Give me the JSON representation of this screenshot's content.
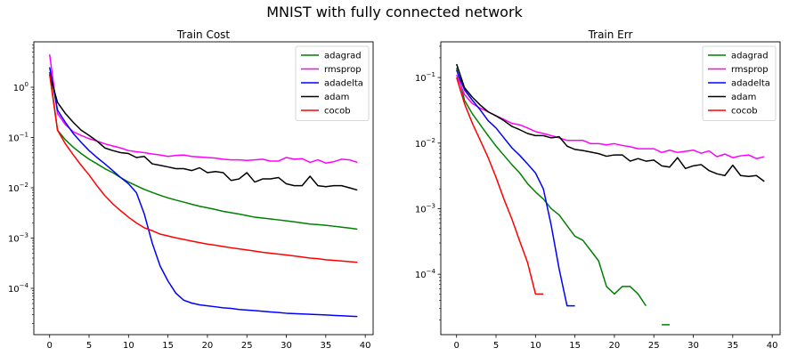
{
  "figure": {
    "title": "MNIST with fully connected network"
  },
  "chart_data": [
    {
      "type": "line",
      "title": "Train Cost",
      "xlabel": "",
      "ylabel": "",
      "yscale": "log",
      "xlim": [
        -2,
        41
      ],
      "ylim": [
        1.2e-05,
        8
      ],
      "xticks": [
        0,
        5,
        10,
        15,
        20,
        25,
        30,
        35,
        40
      ],
      "yticks": [
        {
          "value": 0.0001,
          "base": "10",
          "exp": "−4"
        },
        {
          "value": 0.001,
          "base": "10",
          "exp": "−3"
        },
        {
          "value": 0.01,
          "base": "10",
          "exp": "−2"
        },
        {
          "value": 0.1,
          "base": "10",
          "exp": "−1"
        },
        {
          "value": 1,
          "base": "10",
          "exp": "0"
        }
      ],
      "legend_position": "upper right",
      "grid": false,
      "series": [
        {
          "name": "adagrad",
          "color": "#008000",
          "x": [
            0,
            1,
            2,
            3,
            4,
            5,
            6,
            7,
            8,
            9,
            10,
            11,
            12,
            13,
            14,
            15,
            16,
            17,
            18,
            19,
            20,
            21,
            22,
            23,
            24,
            25,
            26,
            27,
            28,
            29,
            30,
            31,
            32,
            33,
            34,
            35,
            36,
            37,
            38,
            39
          ],
          "y": [
            2.0,
            0.14,
            0.09,
            0.064,
            0.048,
            0.037,
            0.03,
            0.024,
            0.02,
            0.016,
            0.013,
            0.011,
            0.0093,
            0.0081,
            0.0071,
            0.0063,
            0.0057,
            0.0052,
            0.0047,
            0.0043,
            0.004,
            0.0037,
            0.0034,
            0.0032,
            0.003,
            0.0028,
            0.0026,
            0.0025,
            0.0024,
            0.0023,
            0.0022,
            0.0021,
            0.002,
            0.0019,
            0.00185,
            0.0018,
            0.00172,
            0.00165,
            0.00158,
            0.0015
          ]
        },
        {
          "name": "rmsprop",
          "color": "#ff00ff",
          "x": [
            0,
            1,
            2,
            3,
            4,
            5,
            6,
            7,
            8,
            9,
            10,
            11,
            12,
            13,
            14,
            15,
            16,
            17,
            18,
            19,
            20,
            21,
            22,
            23,
            24,
            25,
            26,
            27,
            28,
            29,
            30,
            31,
            32,
            33,
            34,
            35,
            36,
            37,
            38,
            39
          ],
          "y": [
            4.5,
            0.3,
            0.18,
            0.13,
            0.11,
            0.095,
            0.085,
            0.075,
            0.068,
            0.062,
            0.055,
            0.052,
            0.05,
            0.047,
            0.045,
            0.042,
            0.044,
            0.045,
            0.042,
            0.041,
            0.04,
            0.039,
            0.037,
            0.036,
            0.036,
            0.035,
            0.036,
            0.037,
            0.034,
            0.034,
            0.04,
            0.037,
            0.038,
            0.032,
            0.036,
            0.031,
            0.033,
            0.037,
            0.036,
            0.032
          ]
        },
        {
          "name": "adadelta",
          "color": "#0000ff",
          "x": [
            0,
            1,
            2,
            3,
            4,
            5,
            6,
            7,
            8,
            9,
            10,
            11,
            12,
            13,
            14,
            15,
            16,
            17,
            18,
            19,
            20,
            21,
            22,
            23,
            24,
            25,
            26,
            27,
            28,
            29,
            30,
            31,
            32,
            33,
            34,
            35,
            36,
            37,
            38,
            39
          ],
          "y": [
            2.5,
            0.35,
            0.2,
            0.12,
            0.08,
            0.055,
            0.04,
            0.03,
            0.022,
            0.016,
            0.012,
            0.008,
            0.003,
            0.0008,
            0.00028,
            0.00014,
            8e-05,
            5.8e-05,
            5.1e-05,
            4.7e-05,
            4.5e-05,
            4.3e-05,
            4.1e-05,
            4e-05,
            3.8e-05,
            3.7e-05,
            3.6e-05,
            3.5e-05,
            3.4e-05,
            3.3e-05,
            3.2e-05,
            3.15e-05,
            3.1e-05,
            3.05e-05,
            3e-05,
            2.95e-05,
            2.9e-05,
            2.85e-05,
            2.8e-05,
            2.75e-05
          ]
        },
        {
          "name": "adam",
          "color": "#000000",
          "x": [
            0,
            1,
            2,
            3,
            4,
            5,
            6,
            7,
            8,
            9,
            10,
            11,
            12,
            13,
            14,
            15,
            16,
            17,
            18,
            19,
            20,
            21,
            22,
            23,
            24,
            25,
            26,
            27,
            28,
            29,
            30,
            31,
            32,
            33,
            34,
            35,
            36,
            37,
            38,
            39
          ],
          "y": [
            1.8,
            0.5,
            0.3,
            0.2,
            0.14,
            0.11,
            0.085,
            0.062,
            0.055,
            0.05,
            0.048,
            0.04,
            0.042,
            0.03,
            0.028,
            0.026,
            0.024,
            0.024,
            0.022,
            0.025,
            0.02,
            0.021,
            0.02,
            0.014,
            0.015,
            0.02,
            0.013,
            0.015,
            0.015,
            0.016,
            0.012,
            0.011,
            0.011,
            0.017,
            0.011,
            0.0105,
            0.011,
            0.011,
            0.01,
            0.009
          ]
        },
        {
          "name": "cocob",
          "color": "#ff0000",
          "x": [
            0,
            1,
            2,
            3,
            4,
            5,
            6,
            7,
            8,
            9,
            10,
            11,
            12,
            13,
            14,
            15,
            16,
            17,
            18,
            19,
            20,
            21,
            22,
            23,
            24,
            25,
            26,
            27,
            28,
            29,
            30,
            31,
            32,
            33,
            34,
            35,
            36,
            37,
            38,
            39
          ],
          "y": [
            1.8,
            0.14,
            0.075,
            0.045,
            0.028,
            0.018,
            0.011,
            0.007,
            0.0048,
            0.0035,
            0.0026,
            0.002,
            0.0016,
            0.0014,
            0.0012,
            0.0011,
            0.00101,
            0.00094,
            0.00087,
            0.00081,
            0.00076,
            0.00072,
            0.00068,
            0.00064,
            0.00061,
            0.00058,
            0.00055,
            0.00052,
            0.0005,
            0.00048,
            0.00046,
            0.00044,
            0.00042,
            0.0004,
            0.00039,
            0.00037,
            0.00036,
            0.00035,
            0.00034,
            0.00033
          ]
        }
      ]
    },
    {
      "type": "line",
      "title": "Train Err",
      "xlabel": "",
      "ylabel": "",
      "yscale": "log",
      "xlim": [
        -2,
        41
      ],
      "ylim": [
        1.2e-05,
        0.35
      ],
      "xticks": [
        0,
        5,
        10,
        15,
        20,
        25,
        30,
        35,
        40
      ],
      "yticks": [
        {
          "value": 0.0001,
          "base": "10",
          "exp": "−4"
        },
        {
          "value": 0.001,
          "base": "10",
          "exp": "−3"
        },
        {
          "value": 0.01,
          "base": "10",
          "exp": "−2"
        },
        {
          "value": 0.1,
          "base": "10",
          "exp": "−1"
        }
      ],
      "legend_position": "upper right",
      "grid": false,
      "series": [
        {
          "name": "adagrad",
          "color": "#008000",
          "x": [
            0,
            1,
            2,
            3,
            4,
            5,
            6,
            7,
            8,
            9,
            10,
            11,
            12,
            13,
            14,
            15,
            16,
            17,
            18,
            19,
            20,
            21,
            22,
            23,
            24,
            null,
            26,
            27
          ],
          "y": [
            0.14,
            0.045,
            0.028,
            0.019,
            0.013,
            0.009,
            0.0065,
            0.0047,
            0.0035,
            0.0024,
            0.0018,
            0.0014,
            0.001,
            0.0008,
            0.00055,
            0.00038,
            0.00033,
            0.00023,
            0.00016,
            6.5e-05,
            5e-05,
            6.5e-05,
            6.5e-05,
            5e-05,
            3.3e-05,
            null,
            1.7e-05,
            1.7e-05
          ]
        },
        {
          "name": "rmsprop",
          "color": "#ff00ff",
          "x": [
            0,
            1,
            2,
            3,
            4,
            5,
            6,
            7,
            8,
            9,
            10,
            11,
            12,
            13,
            14,
            15,
            16,
            17,
            18,
            19,
            20,
            21,
            22,
            23,
            24,
            25,
            26,
            27,
            28,
            29,
            30,
            31,
            32,
            33,
            34,
            35,
            36,
            37,
            38,
            39
          ],
          "y": [
            0.11,
            0.055,
            0.04,
            0.034,
            0.03,
            0.026,
            0.023,
            0.02,
            0.019,
            0.017,
            0.015,
            0.014,
            0.013,
            0.012,
            0.011,
            0.011,
            0.011,
            0.0098,
            0.0098,
            0.0094,
            0.0098,
            0.0092,
            0.0088,
            0.0082,
            0.0082,
            0.0082,
            0.0072,
            0.0078,
            0.0072,
            0.0075,
            0.0078,
            0.007,
            0.0076,
            0.0062,
            0.0068,
            0.006,
            0.0064,
            0.0066,
            0.0058,
            0.0062
          ]
        },
        {
          "name": "adadelta",
          "color": "#0000ff",
          "x": [
            0,
            1,
            2,
            3,
            4,
            5,
            6,
            7,
            8,
            9,
            10,
            11,
            12,
            13,
            14,
            15
          ],
          "y": [
            0.13,
            0.065,
            0.045,
            0.032,
            0.022,
            0.017,
            0.012,
            0.0085,
            0.0065,
            0.0048,
            0.0035,
            0.002,
            0.00055,
            0.00012,
            3.3e-05,
            3.3e-05
          ]
        },
        {
          "name": "adam",
          "color": "#000000",
          "x": [
            0,
            1,
            2,
            3,
            4,
            5,
            6,
            7,
            8,
            9,
            10,
            11,
            12,
            13,
            14,
            15,
            16,
            17,
            18,
            19,
            20,
            21,
            22,
            23,
            24,
            25,
            26,
            27,
            28,
            29,
            30,
            31,
            32,
            33,
            34,
            35,
            36,
            37,
            38,
            39
          ],
          "y": [
            0.16,
            0.07,
            0.05,
            0.038,
            0.03,
            0.026,
            0.022,
            0.018,
            0.016,
            0.014,
            0.013,
            0.013,
            0.012,
            0.0125,
            0.009,
            0.008,
            0.0077,
            0.0073,
            0.0069,
            0.0063,
            0.0066,
            0.0066,
            0.0053,
            0.0058,
            0.0053,
            0.0055,
            0.0045,
            0.0043,
            0.006,
            0.0041,
            0.0045,
            0.0047,
            0.0038,
            0.0034,
            0.0032,
            0.0046,
            0.0032,
            0.0031,
            0.0032,
            0.0026
          ]
        },
        {
          "name": "cocob",
          "color": "#ff0000",
          "x": [
            0,
            1,
            2,
            3,
            4,
            5,
            6,
            7,
            8,
            9,
            10,
            11
          ],
          "y": [
            0.1,
            0.04,
            0.02,
            0.011,
            0.006,
            0.003,
            0.0014,
            0.0007,
            0.00032,
            0.00015,
            5e-05,
            5e-05
          ]
        }
      ]
    }
  ]
}
